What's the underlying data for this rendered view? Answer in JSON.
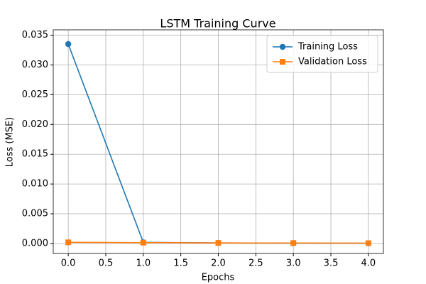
{
  "chart_data": {
    "type": "line",
    "title": "LSTM Training Curve",
    "x_label": "Epochs",
    "y_label": "Loss (MSE)",
    "x": [
      0,
      1,
      2,
      3,
      4
    ],
    "series": [
      {
        "name": "Training Loss",
        "color": "#1f77b4",
        "marker": "circle",
        "values": [
          0.0335,
          0.0002,
          0.0001,
          5e-05,
          4e-05
        ]
      },
      {
        "name": "Validation Loss",
        "color": "#ff7f0e",
        "marker": "square",
        "values": [
          0.0002,
          0.00015,
          0.0001,
          8e-05,
          6e-05
        ]
      }
    ],
    "xlim": [
      -0.2,
      4.2
    ],
    "xticks": [
      {
        "value": 0,
        "label": "0.0"
      },
      {
        "value": 0.5,
        "label": "0.5"
      },
      {
        "value": 1,
        "label": "1.0"
      },
      {
        "value": 1.5,
        "label": "1.5"
      },
      {
        "value": 2,
        "label": "2.0"
      },
      {
        "value": 2.5,
        "label": "2.5"
      },
      {
        "value": 3,
        "label": "3.0"
      },
      {
        "value": 3.5,
        "label": "3.5"
      },
      {
        "value": 4,
        "label": "4.0"
      }
    ],
    "ylim": [
      -0.00167,
      0.0359
    ],
    "yticks": [
      {
        "value": 0,
        "label": "0.000"
      },
      {
        "value": 0.005,
        "label": "0.005"
      },
      {
        "value": 0.01,
        "label": "0.010"
      },
      {
        "value": 0.015,
        "label": "0.015"
      },
      {
        "value": 0.02,
        "label": "0.020"
      },
      {
        "value": 0.025,
        "label": "0.025"
      },
      {
        "value": 0.03,
        "label": "0.030"
      },
      {
        "value": 0.035,
        "label": "0.035"
      }
    ],
    "grid": true,
    "legend": "upper-right"
  }
}
